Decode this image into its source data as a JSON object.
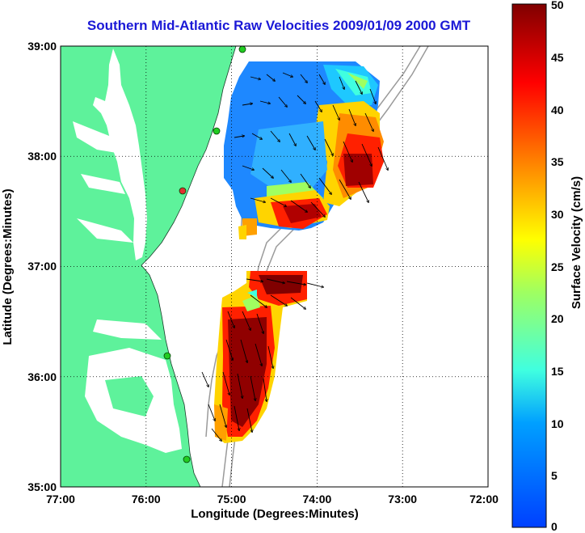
{
  "title": "Southern Mid-Atlantic Raw Velocities 2009/01/09 2000 GMT",
  "x_axis": {
    "label": "Longitude (Degrees:Minutes)",
    "ticks": [
      "77:00",
      "76:00",
      "75:00",
      "74:00",
      "73:00",
      "72:00"
    ]
  },
  "y_axis": {
    "label": "Latitude (Degrees:Minutes)",
    "ticks": [
      "39:00",
      "38:00",
      "37:00",
      "36:00",
      "35:00"
    ]
  },
  "colorbar": {
    "label": "Surface Velocity (cm/s)",
    "ticks": [
      "50",
      "45",
      "40",
      "35",
      "30",
      "25",
      "20",
      "15",
      "10",
      "5",
      "0"
    ],
    "range": [
      0,
      50
    ],
    "colormap": "jet"
  },
  "colors": {
    "land": "#5ef29b",
    "title": "#1a18d6",
    "bathymetry": "#9a9a9a",
    "station_green": "#22cc22",
    "station_red": "#e03030"
  }
}
